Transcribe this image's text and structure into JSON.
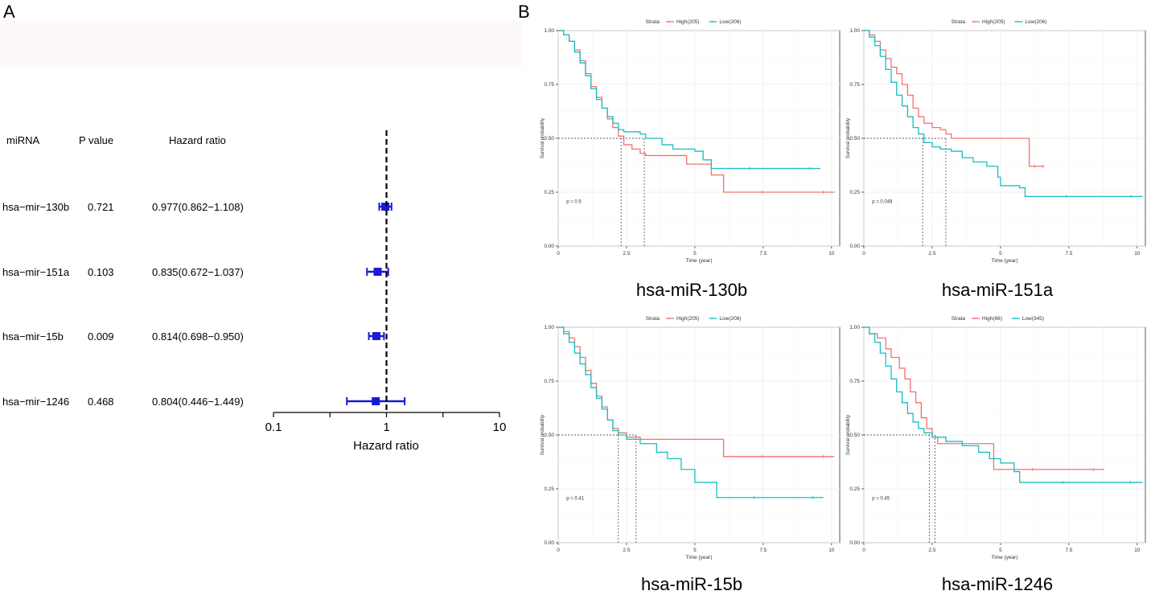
{
  "panels": {
    "a": "A",
    "b": "B"
  },
  "chart_data": [
    {
      "type": "forest",
      "headers": {
        "mirna": "miRNA",
        "pvalue": "P value",
        "hr": "Hazard ratio"
      },
      "rows": [
        {
          "mirna": "hsa−mir−130b",
          "p": "0.721",
          "hr_text": "0.977(0.862−1.108)",
          "hr": 0.977,
          "lo": 0.862,
          "hi": 1.108
        },
        {
          "mirna": "hsa−mir−151a",
          "p": "0.103",
          "hr_text": "0.835(0.672−1.037)",
          "hr": 0.835,
          "lo": 0.672,
          "hi": 1.037
        },
        {
          "mirna": "hsa−mir−15b",
          "p": "0.009",
          "hr_text": "0.814(0.698−0.950)",
          "hr": 0.814,
          "lo": 0.698,
          "hi": 0.95
        },
        {
          "mirna": "hsa−mir−1246",
          "p": "0.468",
          "hr_text": "0.804(0.446−1.449)",
          "hr": 0.804,
          "lo": 0.446,
          "hi": 1.449
        }
      ],
      "xaxis": {
        "scale": "log10",
        "range": [
          0.1,
          10
        ],
        "ticks": [
          {
            "v": 0.1,
            "label": "0.1"
          },
          {
            "v": 0.316,
            "label": ""
          },
          {
            "v": 1,
            "label": "1"
          },
          {
            "v": 3.16,
            "label": ""
          },
          {
            "v": 10,
            "label": "10"
          }
        ],
        "label": "Hazard ratio"
      },
      "reference_line": 1,
      "color": "#1a1ad6"
    },
    {
      "type": "line",
      "subtype": "kaplan-meier",
      "title": "hsa-miR-130b",
      "xlabel": "Time (year)",
      "ylabel": "Survival probability",
      "xlim": [
        0,
        10.3
      ],
      "ylim": [
        0,
        1
      ],
      "xticks": [
        "0",
        "2.5",
        "5",
        "7.5",
        "10"
      ],
      "yticks": [
        "0.00",
        "0.25",
        "0.50",
        "0.75",
        "1.00"
      ],
      "legend": {
        "title": "Strata",
        "position": "top"
      },
      "pvalue": "p = 0.5",
      "medians": [
        2.3,
        3.15
      ],
      "series": [
        {
          "name": "High(205)",
          "color": "#f0736c",
          "points": [
            [
              0,
              1
            ],
            [
              0.2,
              0.98
            ],
            [
              0.4,
              0.95
            ],
            [
              0.6,
              0.91
            ],
            [
              0.8,
              0.86
            ],
            [
              1.0,
              0.8
            ],
            [
              1.2,
              0.74
            ],
            [
              1.4,
              0.69
            ],
            [
              1.6,
              0.64
            ],
            [
              1.8,
              0.59
            ],
            [
              2.0,
              0.55
            ],
            [
              2.2,
              0.51
            ],
            [
              2.4,
              0.47
            ],
            [
              2.7,
              0.45
            ],
            [
              3.0,
              0.43
            ],
            [
              3.2,
              0.42
            ],
            [
              4.6,
              0.42
            ],
            [
              4.7,
              0.38
            ],
            [
              5.5,
              0.38
            ],
            [
              5.6,
              0.33
            ],
            [
              6.0,
              0.33
            ],
            [
              6.05,
              0.25
            ],
            [
              10.1,
              0.25
            ]
          ]
        },
        {
          "name": "Low(206)",
          "color": "#14bfc2",
          "points": [
            [
              0,
              1
            ],
            [
              0.2,
              0.98
            ],
            [
              0.4,
              0.95
            ],
            [
              0.6,
              0.9
            ],
            [
              0.8,
              0.85
            ],
            [
              1.0,
              0.79
            ],
            [
              1.2,
              0.73
            ],
            [
              1.4,
              0.68
            ],
            [
              1.6,
              0.64
            ],
            [
              1.8,
              0.6
            ],
            [
              2.0,
              0.57
            ],
            [
              2.2,
              0.54
            ],
            [
              2.4,
              0.53
            ],
            [
              3.0,
              0.52
            ],
            [
              3.2,
              0.5
            ],
            [
              3.8,
              0.47
            ],
            [
              4.2,
              0.45
            ],
            [
              5.0,
              0.44
            ],
            [
              5.3,
              0.4
            ],
            [
              5.6,
              0.36
            ],
            [
              9.6,
              0.36
            ]
          ]
        }
      ]
    },
    {
      "type": "line",
      "subtype": "kaplan-meier",
      "title": "hsa-miR-151a",
      "xlabel": "Time (year)",
      "ylabel": "Survival probability",
      "xlim": [
        0,
        10.3
      ],
      "ylim": [
        0,
        1
      ],
      "xticks": [
        "0",
        "2.5",
        "5",
        "7.5",
        "10"
      ],
      "yticks": [
        "0.00",
        "0.25",
        "0.50",
        "0.75",
        "1.00"
      ],
      "legend": {
        "title": "Strata",
        "position": "top"
      },
      "pvalue": "p = 0.049",
      "medians": [
        2.15,
        3.0
      ],
      "series": [
        {
          "name": "High(205)",
          "color": "#f0736c",
          "points": [
            [
              0,
              1
            ],
            [
              0.2,
              0.98
            ],
            [
              0.4,
              0.95
            ],
            [
              0.6,
              0.91
            ],
            [
              0.8,
              0.87
            ],
            [
              1.0,
              0.83
            ],
            [
              1.2,
              0.8
            ],
            [
              1.4,
              0.75
            ],
            [
              1.6,
              0.7
            ],
            [
              1.8,
              0.64
            ],
            [
              2.0,
              0.6
            ],
            [
              2.2,
              0.57
            ],
            [
              2.5,
              0.55
            ],
            [
              2.8,
              0.54
            ],
            [
              3.0,
              0.52
            ],
            [
              3.2,
              0.5
            ],
            [
              6.0,
              0.5
            ],
            [
              6.05,
              0.37
            ],
            [
              6.6,
              0.37
            ]
          ]
        },
        {
          "name": "Low(206)",
          "color": "#14bfc2",
          "points": [
            [
              0,
              1
            ],
            [
              0.2,
              0.97
            ],
            [
              0.4,
              0.93
            ],
            [
              0.6,
              0.88
            ],
            [
              0.8,
              0.82
            ],
            [
              1.0,
              0.76
            ],
            [
              1.2,
              0.7
            ],
            [
              1.4,
              0.65
            ],
            [
              1.6,
              0.6
            ],
            [
              1.8,
              0.55
            ],
            [
              2.0,
              0.52
            ],
            [
              2.2,
              0.48
            ],
            [
              2.5,
              0.46
            ],
            [
              2.8,
              0.45
            ],
            [
              3.2,
              0.44
            ],
            [
              3.6,
              0.41
            ],
            [
              4.0,
              0.39
            ],
            [
              4.5,
              0.37
            ],
            [
              4.9,
              0.32
            ],
            [
              5.0,
              0.28
            ],
            [
              5.7,
              0.27
            ],
            [
              5.9,
              0.23
            ],
            [
              10.2,
              0.23
            ]
          ]
        }
      ]
    },
    {
      "type": "line",
      "subtype": "kaplan-meier",
      "title": "hsa-miR-15b",
      "xlabel": "Time (year)",
      "ylabel": "Survival probability",
      "xlim": [
        0,
        10.3
      ],
      "ylim": [
        0,
        1
      ],
      "xticks": [
        "0",
        "2.5",
        "5",
        "7.5",
        "10"
      ],
      "yticks": [
        "0.00",
        "0.25",
        "0.50",
        "0.75",
        "1.00"
      ],
      "legend": {
        "title": "Strata",
        "position": "top"
      },
      "pvalue": "p = 0.41",
      "medians": [
        2.2,
        2.85
      ],
      "series": [
        {
          "name": "High(205)",
          "color": "#f0736c",
          "points": [
            [
              0,
              1
            ],
            [
              0.2,
              0.98
            ],
            [
              0.4,
              0.95
            ],
            [
              0.6,
              0.91
            ],
            [
              0.8,
              0.86
            ],
            [
              1.0,
              0.8
            ],
            [
              1.2,
              0.74
            ],
            [
              1.4,
              0.68
            ],
            [
              1.6,
              0.63
            ],
            [
              1.8,
              0.57
            ],
            [
              2.0,
              0.53
            ],
            [
              2.2,
              0.51
            ],
            [
              2.5,
              0.49
            ],
            [
              3.0,
              0.48
            ],
            [
              6.0,
              0.48
            ],
            [
              6.05,
              0.4
            ],
            [
              10.1,
              0.4
            ]
          ]
        },
        {
          "name": "Low(206)",
          "color": "#14bfc2",
          "points": [
            [
              0,
              1
            ],
            [
              0.2,
              0.97
            ],
            [
              0.4,
              0.93
            ],
            [
              0.6,
              0.88
            ],
            [
              0.8,
              0.83
            ],
            [
              1.0,
              0.78
            ],
            [
              1.2,
              0.72
            ],
            [
              1.4,
              0.67
            ],
            [
              1.6,
              0.62
            ],
            [
              1.8,
              0.57
            ],
            [
              2.0,
              0.52
            ],
            [
              2.2,
              0.5
            ],
            [
              2.5,
              0.48
            ],
            [
              3.0,
              0.46
            ],
            [
              3.6,
              0.42
            ],
            [
              4.0,
              0.39
            ],
            [
              4.5,
              0.34
            ],
            [
              5.0,
              0.28
            ],
            [
              5.6,
              0.28
            ],
            [
              5.8,
              0.21
            ],
            [
              9.7,
              0.21
            ]
          ]
        }
      ]
    },
    {
      "type": "line",
      "subtype": "kaplan-meier",
      "title": "hsa-miR-1246",
      "xlabel": "Time (year)",
      "ylabel": "Survival probability",
      "xlim": [
        0,
        10.3
      ],
      "ylim": [
        0,
        1
      ],
      "xticks": [
        "0",
        "2.5",
        "5",
        "7.5",
        "10"
      ],
      "yticks": [
        "0.00",
        "0.25",
        "0.50",
        "0.75",
        "1.00"
      ],
      "legend": {
        "title": "Strata",
        "position": "top"
      },
      "pvalue": "p = 0.45",
      "medians": [
        2.4,
        2.6
      ],
      "series": [
        {
          "name": "High(66)",
          "color": "#f0736c",
          "points": [
            [
              0,
              1
            ],
            [
              0.2,
              0.97
            ],
            [
              0.5,
              0.95
            ],
            [
              0.8,
              0.9
            ],
            [
              1.0,
              0.86
            ],
            [
              1.3,
              0.81
            ],
            [
              1.5,
              0.76
            ],
            [
              1.7,
              0.7
            ],
            [
              1.9,
              0.65
            ],
            [
              2.1,
              0.58
            ],
            [
              2.3,
              0.53
            ],
            [
              2.5,
              0.49
            ],
            [
              2.7,
              0.46
            ],
            [
              4.7,
              0.46
            ],
            [
              4.75,
              0.34
            ],
            [
              8.8,
              0.34
            ]
          ]
        },
        {
          "name": "Low(345)",
          "color": "#14bfc2",
          "points": [
            [
              0,
              1
            ],
            [
              0.2,
              0.97
            ],
            [
              0.4,
              0.93
            ],
            [
              0.6,
              0.88
            ],
            [
              0.8,
              0.82
            ],
            [
              1.0,
              0.76
            ],
            [
              1.2,
              0.7
            ],
            [
              1.4,
              0.65
            ],
            [
              1.6,
              0.6
            ],
            [
              1.8,
              0.56
            ],
            [
              2.0,
              0.53
            ],
            [
              2.2,
              0.51
            ],
            [
              2.5,
              0.49
            ],
            [
              3.0,
              0.47
            ],
            [
              3.6,
              0.45
            ],
            [
              4.2,
              0.42
            ],
            [
              4.6,
              0.39
            ],
            [
              5.0,
              0.37
            ],
            [
              5.5,
              0.33
            ],
            [
              5.7,
              0.28
            ],
            [
              10.2,
              0.28
            ]
          ]
        }
      ]
    }
  ]
}
